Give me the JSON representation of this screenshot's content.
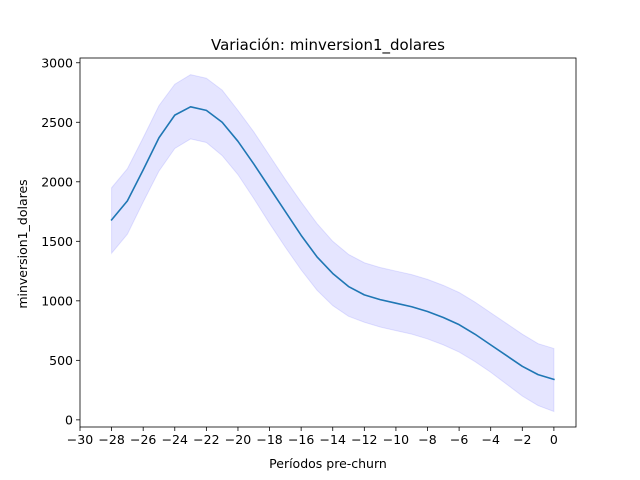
{
  "chart_data": {
    "type": "line",
    "title": "Variación: minversion1_dolares",
    "xlabel": "Períodos pre-churn",
    "ylabel": "minversion1_dolares",
    "xlim": [
      -30,
      1.4
    ],
    "ylim": [
      -60,
      3040
    ],
    "xticks": [
      -30,
      -28,
      -26,
      -24,
      -22,
      -20,
      -18,
      -16,
      -14,
      -12,
      -10,
      -8,
      -6,
      -4,
      -2,
      0
    ],
    "xtick_labels": [
      "−30",
      "−28",
      "−26",
      "−24",
      "−22",
      "−20",
      "−18",
      "−16",
      "−14",
      "−12",
      "−10",
      "−8",
      "−6",
      "−4",
      "−2",
      "0"
    ],
    "yticks": [
      0,
      500,
      1000,
      1500,
      2000,
      2500,
      3000
    ],
    "ytick_labels": [
      "0",
      "500",
      "1000",
      "1500",
      "2000",
      "2500",
      "3000"
    ],
    "grid": false,
    "colors": {
      "line": "#1f77b4",
      "band": "#0000ff",
      "band_alpha": 0.1
    },
    "series": [
      {
        "x": [
          -28,
          -27,
          -26,
          -25,
          -24,
          -23,
          -22,
          -21,
          -20,
          -19,
          -18,
          -17,
          -16,
          -15,
          -14,
          -13,
          -12,
          -11,
          -10,
          -9,
          -8,
          -7,
          -6,
          -5,
          -4,
          -3,
          -2,
          -1,
          0
        ],
        "y": [
          1680,
          1840,
          2100,
          2370,
          2560,
          2630,
          2600,
          2500,
          2340,
          2150,
          1950,
          1750,
          1550,
          1370,
          1230,
          1120,
          1050,
          1010,
          980,
          950,
          910,
          860,
          800,
          720,
          630,
          540,
          450,
          380,
          340
        ],
        "lower": [
          1400,
          1560,
          1830,
          2090,
          2280,
          2360,
          2330,
          2220,
          2060,
          1860,
          1650,
          1450,
          1260,
          1090,
          960,
          870,
          820,
          780,
          750,
          720,
          680,
          630,
          570,
          490,
          400,
          300,
          200,
          120,
          70
        ],
        "upper": [
          1950,
          2110,
          2370,
          2640,
          2820,
          2900,
          2870,
          2770,
          2600,
          2420,
          2220,
          2020,
          1830,
          1650,
          1500,
          1390,
          1320,
          1280,
          1250,
          1220,
          1180,
          1130,
          1070,
          990,
          900,
          810,
          720,
          640,
          600
        ]
      }
    ]
  }
}
